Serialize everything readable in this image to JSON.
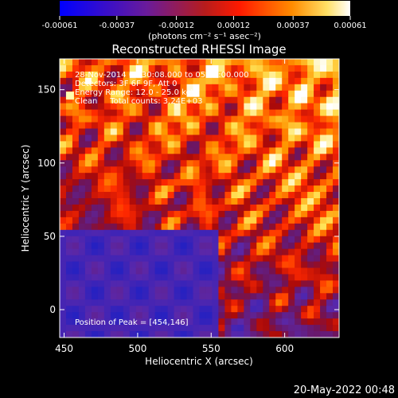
{
  "chart_data": {
    "type": "heatmap",
    "title": "Reconstructed RHESSI Image",
    "xlabel": "Heliocentric X (arcsec)",
    "ylabel": "Heliocentric Y (arcsec)",
    "xlim": [
      447,
      637
    ],
    "ylim": [
      -19,
      171
    ],
    "x_ticks": [
      450,
      500,
      550,
      600
    ],
    "y_ticks": [
      0,
      50,
      100,
      150
    ],
    "colorbar": {
      "range": [
        -0.00061,
        0.00061
      ],
      "tick_values": [
        -0.00061,
        -0.00037,
        -0.00012,
        0.00012,
        0.00037,
        0.00061
      ],
      "tick_labels": [
        "-0.00061",
        "-0.00037",
        "-0.00012",
        "0.00012",
        "0.00037",
        "0.00061"
      ],
      "unit_label": "(photons cm⁻² s⁻¹ asec⁻²)",
      "colors": [
        "#0000ff",
        "#7b1fa2",
        "#ff0000",
        "#ff8c00",
        "#ffffff"
      ]
    },
    "annotations": {
      "line1": "28-Nov-2014 05:30:08.000 to 05:36:00.000",
      "line2": "Detectors: 3F 6F 9F, Att 0",
      "line3": "Energy Range: 12.0 - 25.0 keV",
      "line4": "Clean     Total counts: 3.24E+03",
      "peak": "Position of Peak = [454,146]"
    },
    "peak_position": [
      454,
      146
    ]
  },
  "timestamp": "20-May-2022 00:48"
}
